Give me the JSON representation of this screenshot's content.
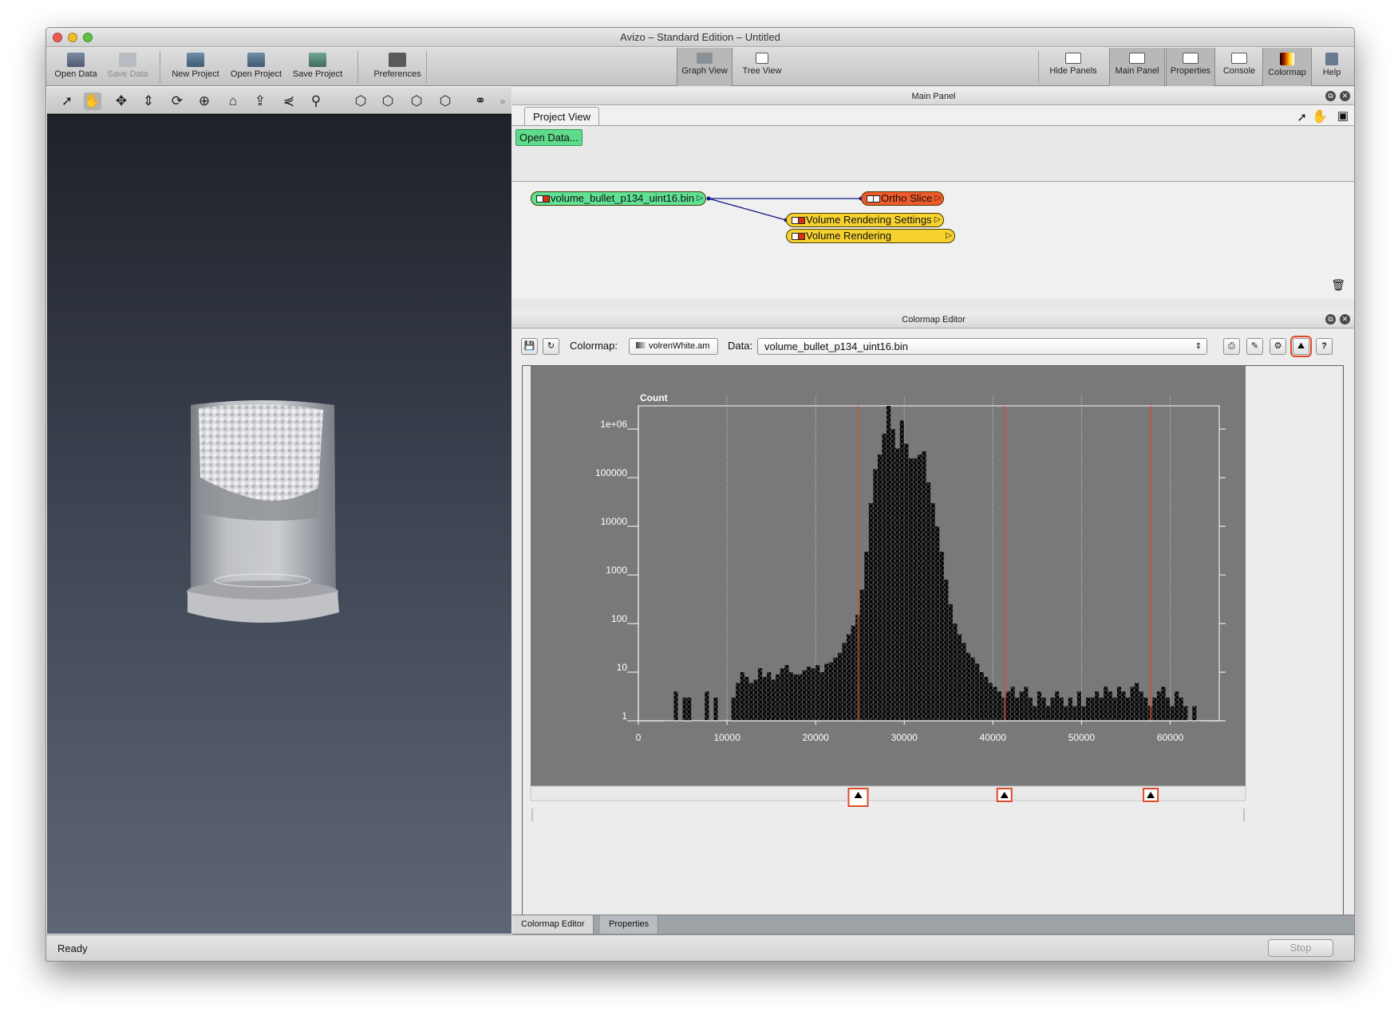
{
  "window": {
    "title": "Avizo – Standard Edition – Untitled"
  },
  "toolbar": {
    "open_data": "Open Data",
    "save_data": "Save Data",
    "new_project": "New Project",
    "open_project": "Open Project",
    "save_project": "Save Project",
    "preferences": "Preferences",
    "graph_view": "Graph View",
    "tree_view": "Tree View",
    "hide_panels": "Hide Panels",
    "main_panel": "Main Panel",
    "properties": "Properties",
    "console": "Console",
    "colormap": "Colormap",
    "help": "Help"
  },
  "main_panel": {
    "title": "Main Panel",
    "tab": "Project View",
    "open_data_button": "Open Data...",
    "nodes": {
      "data": "volume_bullet_p134_uint16.bin",
      "ortho": "Ortho Slice",
      "vr_settings": "Volume Rendering Settings",
      "vr": "Volume Rendering"
    }
  },
  "colormap_editor": {
    "title": "Colormap Editor",
    "colormap_label": "Colormap:",
    "colormap_value": "volrenWhite.am",
    "data_label": "Data:",
    "data_value": "volume_bullet_p134_uint16.bin",
    "help": "?"
  },
  "bottom_tabs": {
    "colormap_editor": "Colormap Editor",
    "properties": "Properties"
  },
  "status": {
    "text": "Ready",
    "stop": "Stop"
  },
  "chart_data": {
    "type": "bar",
    "ylabel": "Count",
    "yscale": "log",
    "xlim": [
      0,
      65535
    ],
    "ylim": [
      1,
      3000000
    ],
    "xticks": [
      "0",
      "10000",
      "20000",
      "30000",
      "40000",
      "50000",
      "60000"
    ],
    "yticks": [
      "1",
      "10",
      "100",
      "1000",
      "10000",
      "100000",
      "1e+06"
    ],
    "markers": [
      24800,
      41300,
      57800
    ],
    "bins_x": [
      3000,
      3500,
      4000,
      4500,
      5000,
      5500,
      6000,
      6500,
      7000,
      7500,
      8000,
      8500,
      9000,
      9500,
      10000,
      10500,
      11000,
      11500,
      12000,
      12500,
      13000,
      13500,
      14000,
      14500,
      15000,
      15500,
      16000,
      16500,
      17000,
      17500,
      18000,
      18500,
      19000,
      19500,
      20000,
      20500,
      21000,
      21500,
      22000,
      22500,
      23000,
      23500,
      24000,
      24500,
      25000,
      25500,
      26000,
      26500,
      27000,
      27500,
      28000,
      28500,
      29000,
      29500,
      30000,
      30500,
      31000,
      31500,
      32000,
      32500,
      33000,
      33500,
      34000,
      34500,
      35000,
      35500,
      36000,
      36500,
      37000,
      37500,
      38000,
      38500,
      39000,
      39500,
      40000,
      40500,
      41000,
      41500,
      42000,
      42500,
      43000,
      43500,
      44000,
      44500,
      45000,
      45500,
      46000,
      46500,
      47000,
      47500,
      48000,
      48500,
      49000,
      49500,
      50000,
      50500,
      51000,
      51500,
      52000,
      52500,
      53000,
      53500,
      54000,
      54500,
      55000,
      55500,
      56000,
      56500,
      57000,
      57500,
      58000,
      58500,
      59000,
      59500,
      60000,
      60500,
      61000,
      61500,
      62000,
      62500,
      63000
    ],
    "counts": [
      1,
      1,
      4,
      1,
      3,
      3,
      1,
      1,
      1,
      4,
      1,
      3,
      1,
      1,
      1,
      3,
      6,
      10,
      8,
      6,
      7,
      12,
      8,
      10,
      7,
      9,
      12,
      14,
      10,
      9,
      9,
      11,
      13,
      12,
      14,
      10,
      15,
      16,
      20,
      25,
      40,
      60,
      90,
      150,
      500,
      3000,
      30000,
      150000,
      300000,
      800000,
      3000000,
      1000000,
      400000,
      1500000,
      500000,
      250000,
      250000,
      300000,
      350000,
      80000,
      30000,
      10000,
      3000,
      800,
      250,
      100,
      60,
      40,
      25,
      20,
      15,
      10,
      8,
      6,
      5,
      4,
      3,
      4,
      5,
      3,
      4,
      5,
      3,
      2,
      4,
      3,
      2,
      3,
      4,
      3,
      2,
      3,
      2,
      4,
      2,
      3,
      3,
      4,
      3,
      5,
      4,
      3,
      5,
      4,
      3,
      5,
      6,
      4,
      3,
      2,
      3,
      4,
      5,
      3,
      2,
      4,
      3,
      2,
      1,
      2,
      1
    ]
  }
}
